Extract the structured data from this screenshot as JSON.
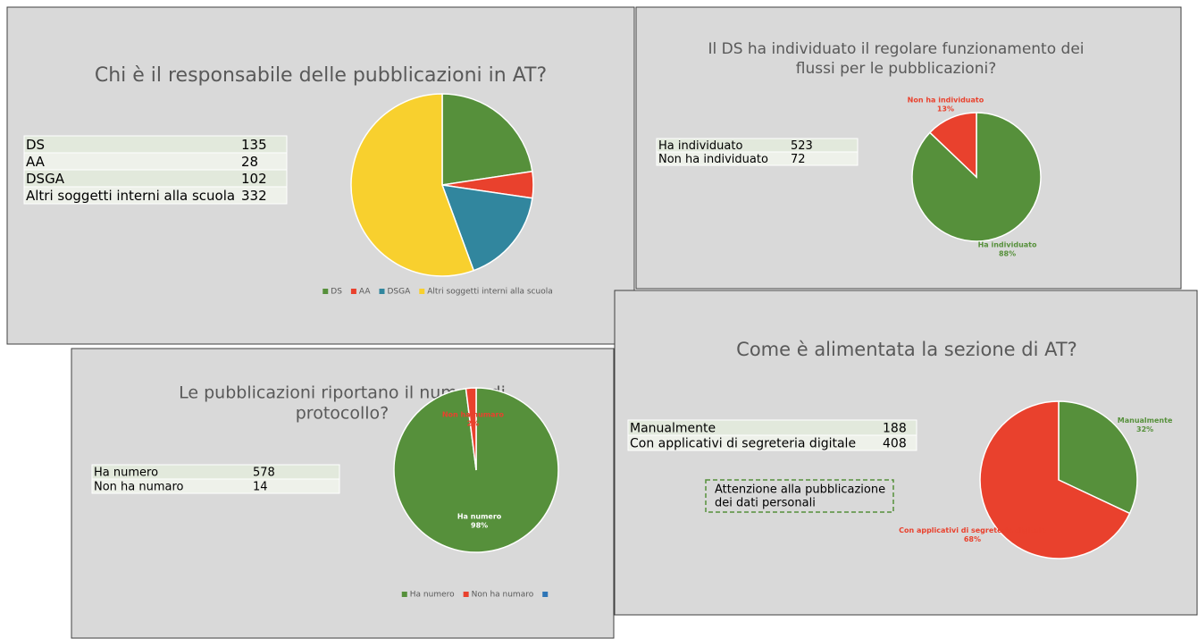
{
  "chart_data": [
    {
      "type": "pie",
      "title": [
        "Chi è il responsabile delle pubblicazioni in AT?"
      ],
      "categories": [
        "DS",
        "AA",
        "DSGA",
        "Altri soggetti interni alla scuola"
      ],
      "values": [
        135,
        28,
        102,
        332
      ],
      "colors": [
        "#56903b",
        "#e9412d",
        "#31869e",
        "#f8d02e"
      ],
      "legend": "bottom"
    },
    {
      "type": "pie",
      "title": [
        "Il DS ha individuato il regolare funzionamento dei",
        "flussi per le pubblicazioni?"
      ],
      "categories": [
        "Ha individuato",
        "Non ha individuato"
      ],
      "values": [
        88,
        13
      ],
      "value_labels": [
        "88%",
        "13%"
      ],
      "colors": [
        "#56903b",
        "#e9412d"
      ]
    },
    {
      "type": "pie",
      "title": [
        "Le pubblicazioni riportano il numero di",
        "protocollo?"
      ],
      "categories": [
        "Ha numero",
        "Non ha numaro",
        null
      ],
      "values": [
        98,
        2,
        null
      ],
      "value_labels": [
        "98%",
        "2%",
        null
      ],
      "colors": [
        "#56903b",
        "#e9412d",
        "#2e75b6"
      ],
      "legend": "bottom"
    },
    {
      "type": "pie",
      "title": [
        "Come è alimentata la sezione di AT?"
      ],
      "categories": [
        "Manualmente",
        "Con applicativi di segreteria digitale"
      ],
      "values": [
        32,
        68
      ],
      "value_labels": [
        "32%",
        "68%"
      ],
      "colors": [
        "#56903b",
        "#e9412d"
      ]
    }
  ],
  "tables": [
    {
      "rows": [
        [
          "DS",
          "135"
        ],
        [
          "AA",
          "28"
        ],
        [
          "DSGA",
          "102"
        ],
        [
          "Altri soggetti interni alla scuola",
          "332"
        ]
      ]
    },
    {
      "rows": [
        [
          "Ha individuato",
          "523"
        ],
        [
          "Non ha individuato",
          "72"
        ]
      ]
    },
    {
      "rows": [
        [
          "Ha numero",
          "578"
        ],
        [
          "Non ha numaro",
          "14"
        ]
      ]
    },
    {
      "rows": [
        [
          "Manualmente",
          "188"
        ],
        [
          "Con applicativi di segreteria digitale",
          "408"
        ]
      ]
    }
  ],
  "note": [
    "Attenzione alla pubblicazione",
    "dei dati personali"
  ]
}
